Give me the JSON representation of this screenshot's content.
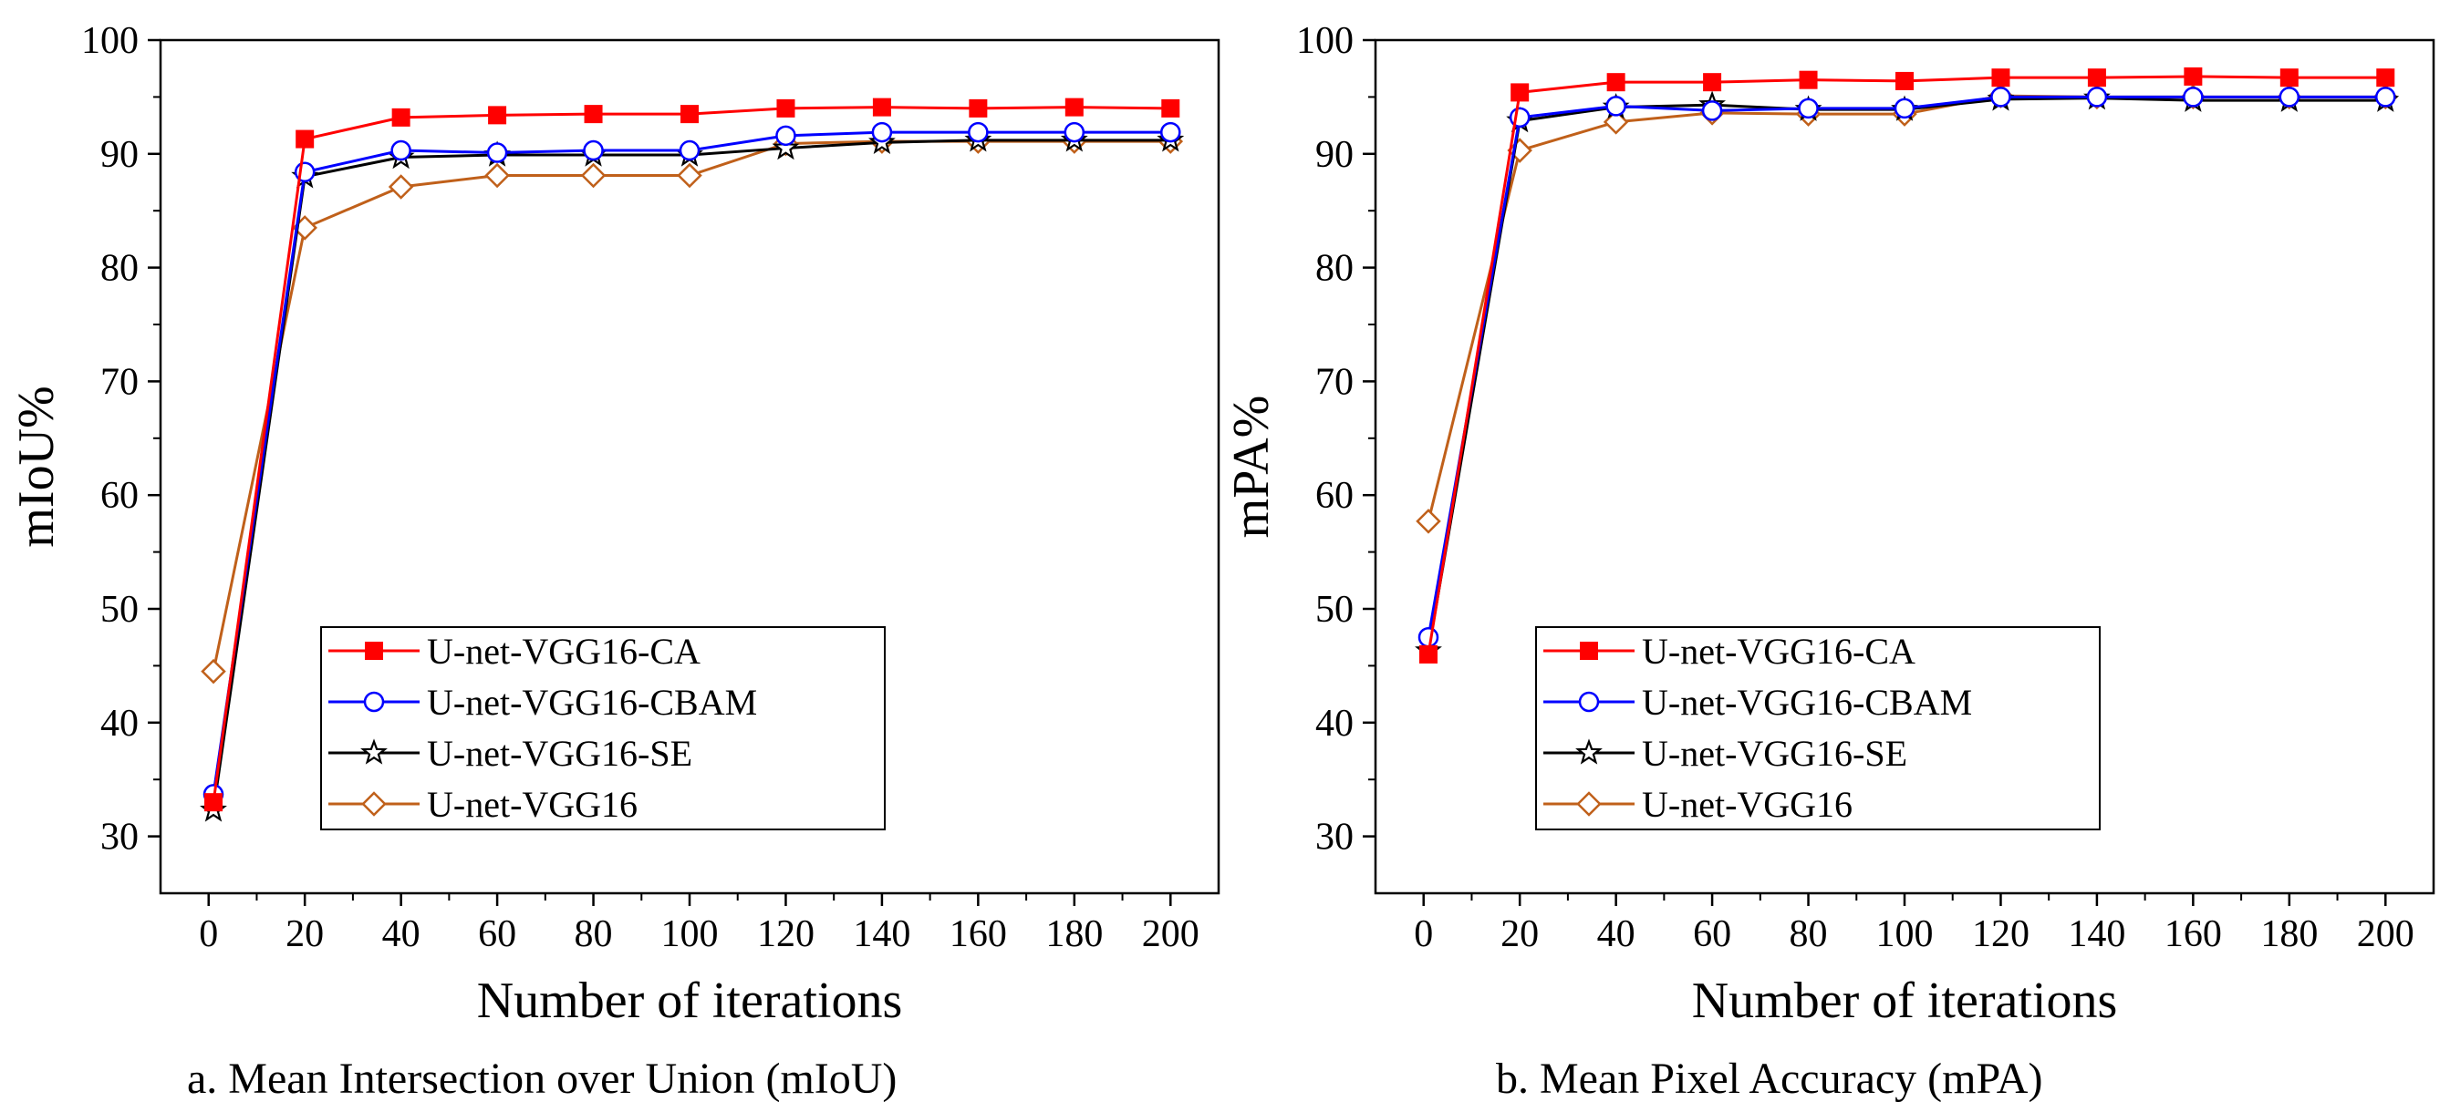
{
  "chart_data": [
    {
      "type": "line",
      "caption": "a. Mean Intersection over Union (mIoU)",
      "xlabel": "Number of iterations",
      "ylabel": "mIoU%",
      "xlim": [
        -10,
        210
      ],
      "ylim": [
        25,
        100
      ],
      "xticks": [
        0,
        20,
        40,
        60,
        80,
        100,
        120,
        140,
        160,
        180,
        200
      ],
      "yticks": [
        30,
        40,
        50,
        60,
        70,
        80,
        90,
        100
      ],
      "legend_position": "lower-center",
      "x": [
        1,
        20,
        40,
        60,
        80,
        100,
        120,
        140,
        160,
        180,
        200
      ],
      "series": [
        {
          "name": "U-net-VGG16-CA",
          "color": "#ff0000",
          "marker": "filled-square",
          "values": [
            33.0,
            91.3,
            93.2,
            93.4,
            93.5,
            93.5,
            94.0,
            94.1,
            94.0,
            94.1,
            94.0
          ]
        },
        {
          "name": "U-net-VGG16-CBAM",
          "color": "#0000ff",
          "marker": "open-circle",
          "values": [
            33.7,
            88.4,
            90.3,
            90.1,
            90.3,
            90.3,
            91.6,
            91.9,
            91.9,
            91.9,
            91.9
          ]
        },
        {
          "name": "U-net-VGG16-SE",
          "color": "#000000",
          "marker": "open-star",
          "values": [
            32.3,
            88.0,
            89.7,
            89.9,
            89.9,
            89.9,
            90.5,
            91.0,
            91.2,
            91.2,
            91.2
          ]
        },
        {
          "name": "U-net-VGG16",
          "color": "#c0601a",
          "marker": "open-diamond",
          "values": [
            44.5,
            83.5,
            87.1,
            88.1,
            88.1,
            88.1,
            90.9,
            91.1,
            91.1,
            91.1,
            91.1
          ]
        }
      ]
    },
    {
      "type": "line",
      "caption": "b. Mean Pixel Accuracy (mPA)",
      "xlabel": "Number of iterations",
      "ylabel": "mPA%",
      "xlim": [
        -10,
        210
      ],
      "ylim": [
        25,
        100
      ],
      "xticks": [
        0,
        20,
        40,
        60,
        80,
        100,
        120,
        140,
        160,
        180,
        200
      ],
      "yticks": [
        30,
        40,
        50,
        60,
        70,
        80,
        90,
        100
      ],
      "legend_position": "lower-center",
      "x": [
        1,
        20,
        40,
        60,
        80,
        100,
        120,
        140,
        160,
        180,
        200
      ],
      "series": [
        {
          "name": "U-net-VGG16-CA",
          "color": "#ff0000",
          "marker": "filled-square",
          "values": [
            46.0,
            95.4,
            96.3,
            96.3,
            96.5,
            96.4,
            96.7,
            96.7,
            96.8,
            96.7,
            96.7
          ]
        },
        {
          "name": "U-net-VGG16-CBAM",
          "color": "#0000ff",
          "marker": "open-circle",
          "values": [
            47.5,
            93.2,
            94.2,
            93.8,
            94.0,
            94.0,
            95.0,
            95.0,
            95.0,
            95.0,
            95.0
          ]
        },
        {
          "name": "U-net-VGG16-SE",
          "color": "#000000",
          "marker": "open-star",
          "values": [
            46.3,
            92.9,
            94.1,
            94.3,
            93.9,
            93.9,
            94.8,
            94.9,
            94.7,
            94.7,
            94.7
          ]
        },
        {
          "name": "U-net-VGG16",
          "color": "#c0601a",
          "marker": "open-diamond",
          "values": [
            57.7,
            90.3,
            92.8,
            93.6,
            93.5,
            93.5,
            95.1,
            95.0,
            95.0,
            95.0,
            95.0
          ]
        }
      ]
    }
  ]
}
